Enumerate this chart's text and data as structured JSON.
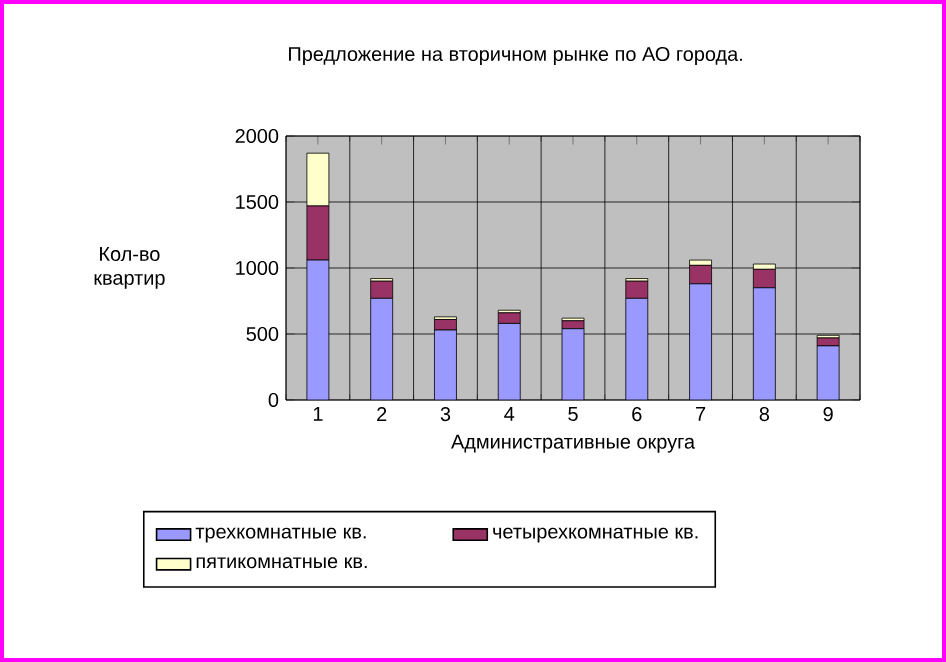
{
  "chart_data": {
    "type": "bar",
    "title": "Предложение на вторичном рынке по АО города.",
    "xlabel": "Административные округа",
    "ylabel": "Кол-во квартир",
    "categories": [
      "1",
      "2",
      "3",
      "4",
      "5",
      "6",
      "7",
      "8",
      "9"
    ],
    "stacked": true,
    "series": [
      {
        "name": "трехкомнатные кв.",
        "color": "#9999ff",
        "values": [
          1060,
          770,
          530,
          580,
          540,
          770,
          880,
          850,
          410
        ]
      },
      {
        "name": "четырехкомнатные кв.",
        "color": "#993366",
        "values": [
          410,
          130,
          80,
          80,
          60,
          130,
          140,
          140,
          60
        ]
      },
      {
        "name": "пятикомнатные кв.",
        "color": "#ffffcc",
        "values": [
          400,
          20,
          20,
          20,
          20,
          20,
          40,
          40,
          20
        ]
      }
    ],
    "ylim": [
      0,
      2000
    ],
    "yticks": [
      0,
      500,
      1000,
      1500,
      2000
    ],
    "grid": true,
    "legend": "bottom"
  }
}
